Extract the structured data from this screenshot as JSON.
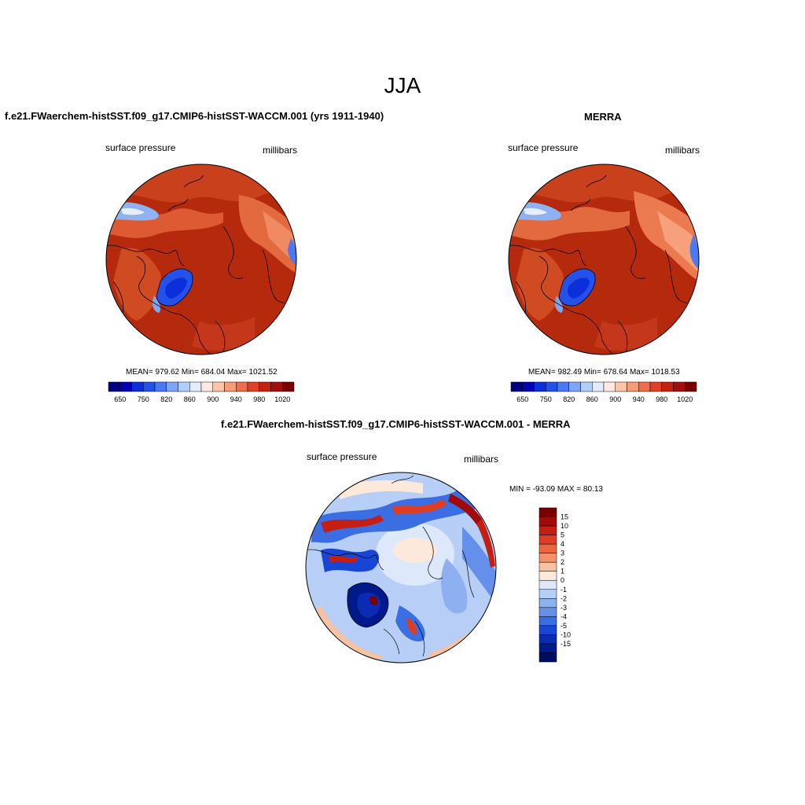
{
  "season": "JJA",
  "palette_pressure": [
    "#00007f",
    "#0000b5",
    "#0d2fd9",
    "#2451e8",
    "#4a79f2",
    "#7ea6f7",
    "#b2cdfa",
    "#e2ecfc",
    "#fdeadc",
    "#fbc5a8",
    "#f69c79",
    "#ee6d4c",
    "#e0402a",
    "#c42211",
    "#a0100a",
    "#7a0000"
  ],
  "palette_diff": [
    "#7a0000",
    "#a10a08",
    "#c41f10",
    "#dd3d24",
    "#ec653f",
    "#f2916b",
    "#f7c1a3",
    "#fde9db",
    "#dde8fa",
    "#b7cff6",
    "#8eb0f1",
    "#6490eb",
    "#3b6de3",
    "#1746d6",
    "#0a2bb2",
    "#001a8c",
    "#000d66"
  ],
  "panel_left": {
    "title": "f.e21.FWaerchem-histSST.f09_g17.CMIP6-histSST-WACCM.001 (yrs 1911-1940)",
    "variable": "surface pressure",
    "units": "millibars",
    "stats": "MEAN= 979.62  Min= 684.04  Max= 1021.52",
    "colorbar_ticks": [
      "650",
      "750",
      "820",
      "860",
      "900",
      "940",
      "980",
      "1020"
    ]
  },
  "panel_right": {
    "title": "MERRA",
    "variable": "surface pressure",
    "units": "millibars",
    "stats": "MEAN= 982.49  Min= 678.64  Max= 1018.53",
    "colorbar_ticks": [
      "650",
      "750",
      "820",
      "860",
      "900",
      "940",
      "980",
      "1020"
    ]
  },
  "panel_diff": {
    "title": "f.e21.FWaerchem-histSST.f09_g17.CMIP6-histSST-WACCM.001 - MERRA",
    "variable": "surface pressure",
    "units": "millibars",
    "stats": "MIN = -93.09 MAX =  80.13",
    "colorbar_ticks": [
      "15",
      "10",
      "5",
      "4",
      "3",
      "2",
      "1",
      "0",
      "-1",
      "-2",
      "-3",
      "-4",
      "-5",
      "-10",
      "-15"
    ]
  }
}
